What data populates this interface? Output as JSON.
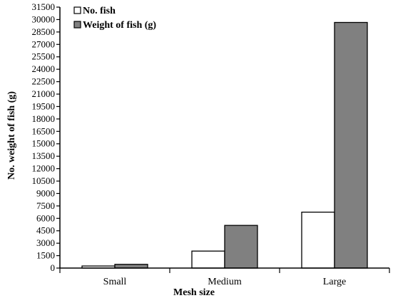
{
  "chart_data": {
    "type": "bar",
    "categories": [
      "Small",
      "Medium",
      "Large"
    ],
    "series": [
      {
        "name": "No. fish",
        "values": [
          250,
          2050,
          6750
        ],
        "color": "#ffffff"
      },
      {
        "name": "Weight of fish (g)",
        "values": [
          450,
          5150,
          29650
        ],
        "color": "#808080"
      }
    ],
    "xlabel": "Mesh size",
    "ylabel": "No. weight of fish (g)",
    "ylim": [
      0,
      31500
    ],
    "ytick_step": 1500,
    "yticks": [
      "0",
      "1500",
      "3000",
      "4500",
      "6000",
      "7500",
      "9000",
      "10500",
      "12000",
      "13500",
      "15000",
      "16500",
      "18000",
      "19500",
      "21000",
      "22500",
      "24000",
      "25500",
      "27000",
      "28500",
      "30000",
      "31500"
    ],
    "legend_position": "top-left",
    "grid": false
  }
}
